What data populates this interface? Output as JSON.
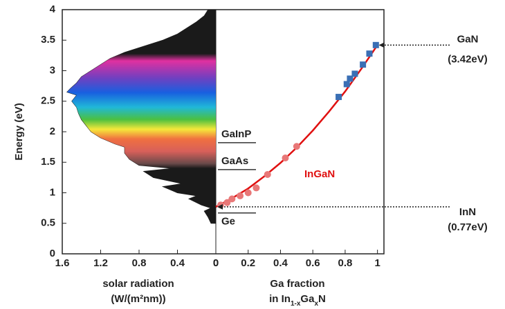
{
  "chart_data": [
    {
      "type": "area",
      "ylabel": "Energy (eV)",
      "xlabel": "solar radiation",
      "xlabel_unit": "(W/(m²nm))",
      "ylim": [
        0,
        4
      ],
      "yticks": [
        0,
        0.5,
        1,
        1.5,
        2,
        2.5,
        3,
        3.5,
        4
      ],
      "xlim": [
        1.6,
        0
      ],
      "xticks": [
        1.6,
        1.2,
        0.8,
        0.4,
        0
      ],
      "color": "#1a1a1a",
      "y": [
        0.5,
        0.6,
        0.7,
        0.75,
        0.8,
        0.9,
        0.95,
        1.0,
        1.1,
        1.15,
        1.25,
        1.35,
        1.4,
        1.45,
        1.55,
        1.65,
        1.75,
        1.8,
        1.9,
        2.0,
        2.1,
        2.2,
        2.3,
        2.4,
        2.5,
        2.6,
        2.65,
        2.7,
        2.8,
        2.9,
        3.0,
        3.1,
        3.2,
        3.3,
        3.4,
        3.5,
        3.6,
        3.7,
        3.8,
        3.9,
        4.0
      ],
      "values": [
        0.05,
        0.08,
        0.12,
        0.05,
        0.15,
        0.28,
        0.2,
        0.4,
        0.55,
        0.35,
        0.65,
        0.75,
        0.45,
        0.8,
        0.9,
        0.95,
        0.95,
        1.05,
        1.2,
        1.3,
        1.35,
        1.4,
        1.43,
        1.45,
        1.5,
        1.45,
        1.55,
        1.52,
        1.45,
        1.4,
        1.3,
        1.2,
        1.1,
        0.95,
        0.75,
        0.55,
        0.4,
        0.3,
        0.2,
        0.12,
        0.08
      ]
    },
    {
      "type": "scatter",
      "xlabel": "Ga fraction",
      "xlabel_formula": [
        "in In",
        "1-x",
        "Ga",
        "x",
        "N"
      ],
      "ylim": [
        0,
        4
      ],
      "xlim": [
        0,
        1.04
      ],
      "xticks": [
        0,
        0.2,
        0.4,
        0.6,
        0.8,
        1
      ],
      "series": [
        {
          "style": "line",
          "color": "#e01010",
          "x": [
            0,
            0.1,
            0.2,
            0.3,
            0.4,
            0.5,
            0.6,
            0.7,
            0.8,
            0.9,
            1
          ],
          "values": [
            0.77,
            0.91,
            1.07,
            1.27,
            1.49,
            1.74,
            2.02,
            2.33,
            2.66,
            3.03,
            3.42
          ]
        },
        {
          "style": "circle",
          "color": "#e87878",
          "x": [
            0.03,
            0.07,
            0.1,
            0.15,
            0.2,
            0.25,
            0.32,
            0.43,
            0.5
          ],
          "values": [
            0.8,
            0.84,
            0.9,
            0.95,
            1.0,
            1.08,
            1.3,
            1.57,
            1.76
          ]
        },
        {
          "style": "square",
          "color": "#3a6fb5",
          "x": [
            0.76,
            0.81,
            0.83,
            0.86,
            0.91,
            0.95,
            0.99
          ],
          "values": [
            2.57,
            2.78,
            2.87,
            2.95,
            3.1,
            3.28,
            3.42
          ]
        }
      ],
      "curve_label": "InGaN",
      "references": [
        {
          "label": "GaInP",
          "energy": 1.82
        },
        {
          "label": "GaAs",
          "energy": 1.38
        },
        {
          "label": "Ge",
          "energy": 0.67
        }
      ],
      "callouts": [
        {
          "label": "GaN",
          "note": "(3.42eV)",
          "x": 1,
          "y": 3.42
        },
        {
          "label": "InN",
          "note": "(0.77eV)",
          "x": 0,
          "y": 0.77
        }
      ]
    }
  ]
}
